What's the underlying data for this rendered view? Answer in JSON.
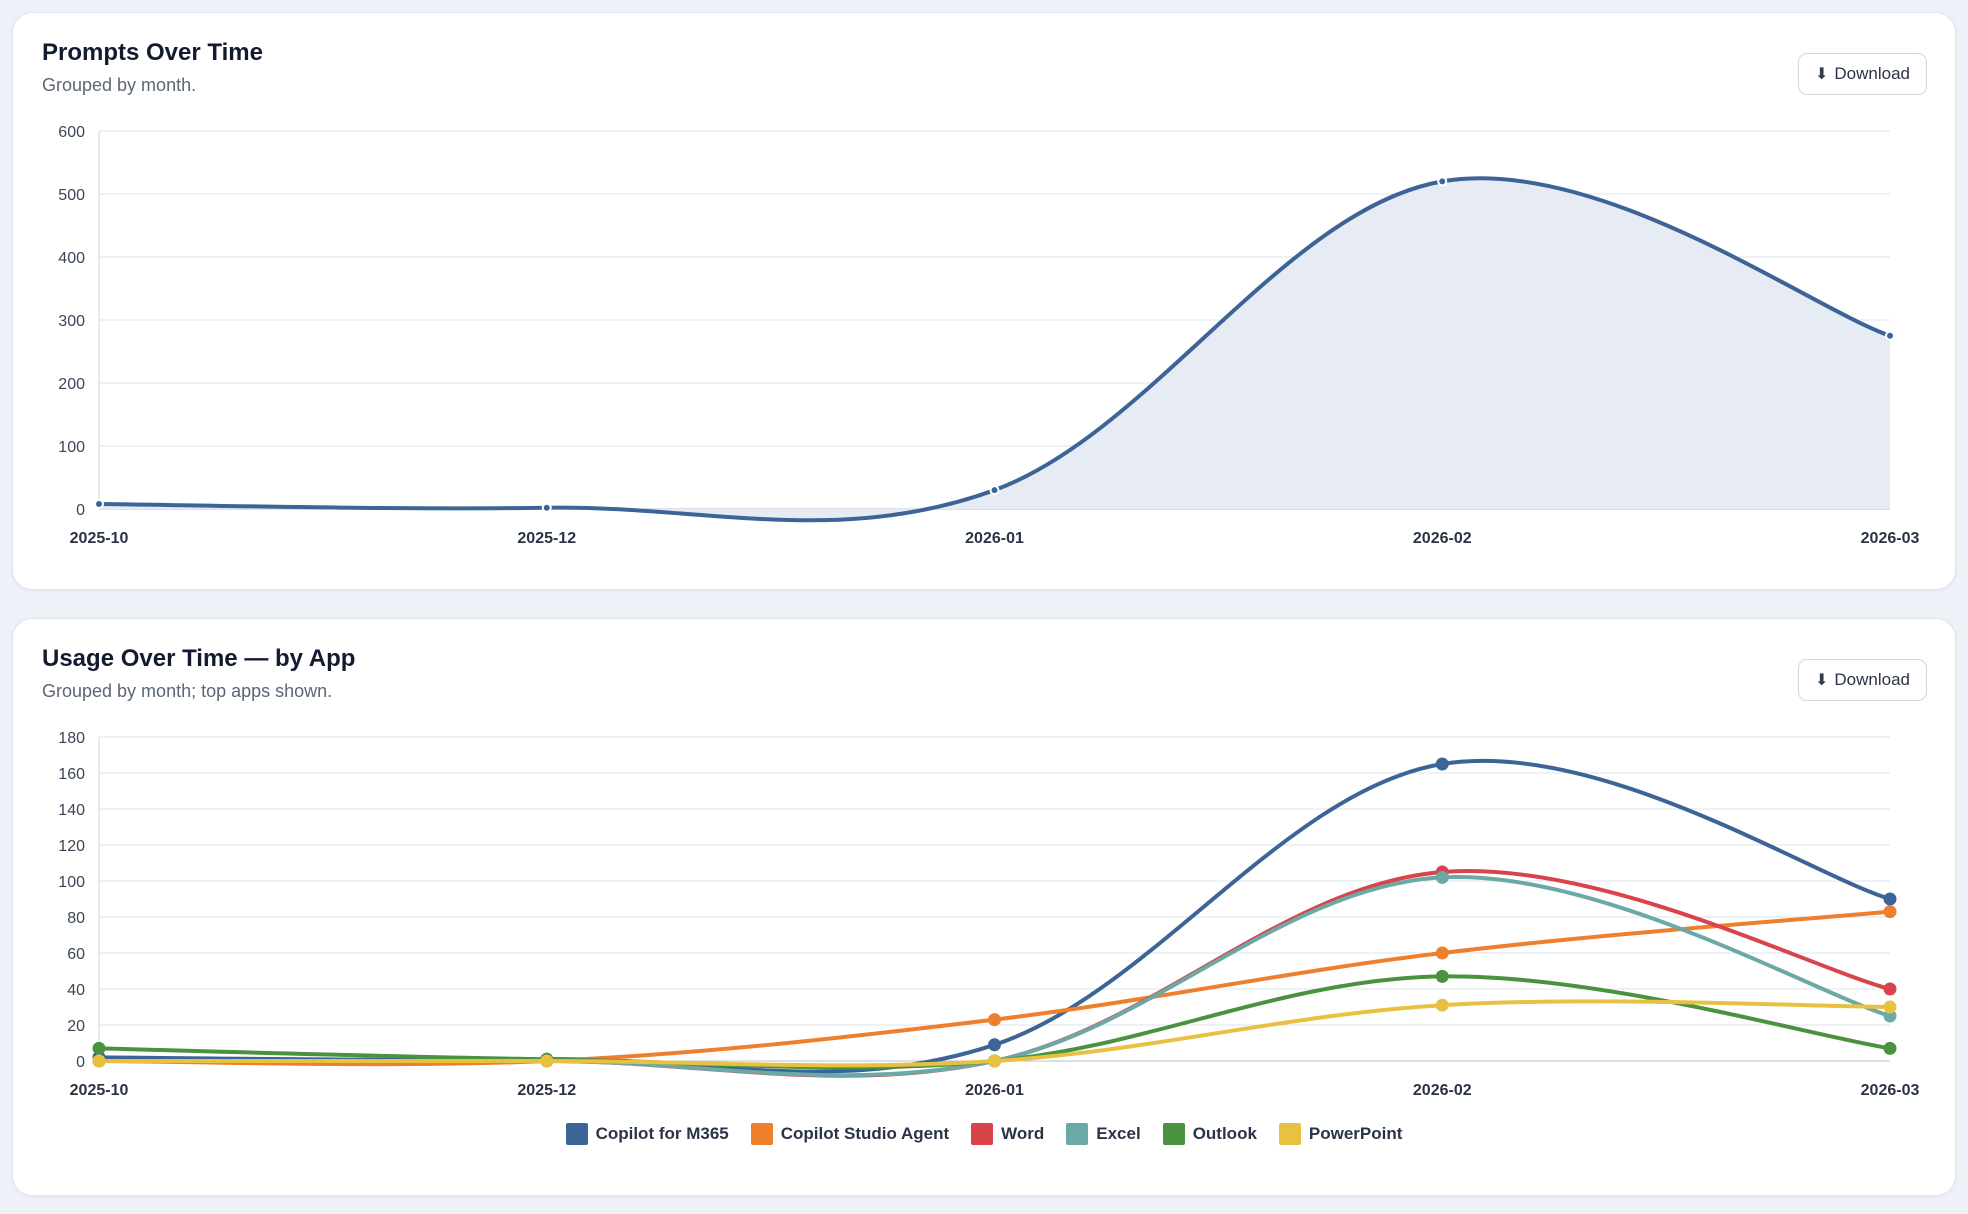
{
  "cards": [
    {
      "title": "Prompts Over Time",
      "subtitle": "Grouped by month.",
      "download_label": "Download",
      "download_icon": "download-arrow-icon"
    },
    {
      "title": "Usage Over Time — by App",
      "subtitle": "Grouped by month; top apps shown.",
      "download_label": "Download",
      "download_icon": "download-arrow-icon"
    }
  ],
  "chart_data": [
    {
      "type": "area",
      "title": "Prompts Over Time",
      "subtitle": "Grouped by month.",
      "categories": [
        "2025-10",
        "2025-12",
        "2026-01",
        "2026-02",
        "2026-03"
      ],
      "ylim": [
        0,
        600
      ],
      "yticks": [
        0,
        100,
        200,
        300,
        400,
        500,
        600
      ],
      "grid": true,
      "series": [
        {
          "values": [
            8,
            2,
            30,
            520,
            275
          ],
          "color": "#3d6496",
          "fill": "#e6ebf4"
        }
      ]
    },
    {
      "type": "line",
      "title": "Usage Over Time — by App",
      "subtitle": "Grouped by month; top apps shown.",
      "categories": [
        "2025-10",
        "2025-12",
        "2026-01",
        "2026-02",
        "2026-03"
      ],
      "ylim": [
        0,
        180
      ],
      "yticks": [
        0,
        20,
        40,
        60,
        80,
        100,
        120,
        140,
        160,
        180
      ],
      "grid": true,
      "legend": "bottom",
      "series": [
        {
          "name": "Copilot for M365",
          "color": "#3d6496",
          "values": [
            2,
            1,
            9,
            165,
            90
          ]
        },
        {
          "name": "Copilot Studio Agent",
          "color": "#ee7f2d",
          "values": [
            0,
            0,
            23,
            60,
            83
          ]
        },
        {
          "name": "Word",
          "color": "#d9434b",
          "values": [
            0,
            0,
            0,
            105,
            40
          ]
        },
        {
          "name": "Excel",
          "color": "#6aa9a5",
          "values": [
            0,
            0,
            0,
            102,
            25
          ]
        },
        {
          "name": "Outlook",
          "color": "#4a923f",
          "values": [
            7,
            1,
            0,
            47,
            7
          ]
        },
        {
          "name": "PowerPoint",
          "color": "#e8c141",
          "values": [
            0,
            0,
            0,
            31,
            30
          ]
        }
      ]
    }
  ]
}
